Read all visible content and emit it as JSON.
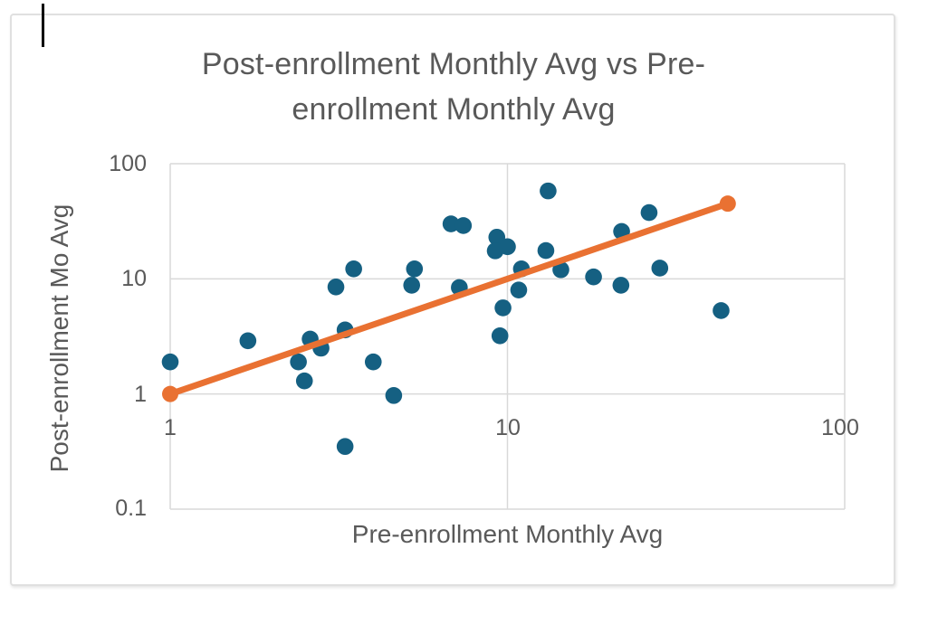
{
  "cursor": {
    "present": true
  },
  "chart_data": {
    "type": "scatter",
    "title": "Post-enrollment Monthly Avg vs Pre-enrollment Monthly Avg",
    "title_lines": [
      "Post-enrollment Monthly Avg vs Pre-",
      "enrollment Monthly Avg"
    ],
    "xlabel": "Pre-enrollment Monthly Avg",
    "ylabel": "Post-enrollment Mo Avg",
    "x_scale": "log",
    "y_scale": "log",
    "xlim": [
      1,
      100
    ],
    "ylim": [
      0.1,
      100
    ],
    "x_ticks": [
      1,
      10,
      100
    ],
    "x_tick_labels": [
      "1",
      "10",
      "100"
    ],
    "y_ticks": [
      100,
      10,
      1,
      0.1
    ],
    "y_tick_labels": [
      "100",
      "10",
      "1",
      "0.1"
    ],
    "grid": true,
    "legend": false,
    "series": [
      {
        "name": "scatter-points",
        "type": "scatter",
        "color": "#156082",
        "marker_radius": 9.3,
        "points": [
          [
            1.0,
            1.9
          ],
          [
            1.7,
            2.9
          ],
          [
            2.4,
            1.9
          ],
          [
            2.6,
            3.0
          ],
          [
            2.8,
            2.5
          ],
          [
            2.5,
            1.3
          ],
          [
            3.3,
            3.6
          ],
          [
            3.1,
            8.5
          ],
          [
            3.5,
            12.2
          ],
          [
            3.3,
            0.35
          ],
          [
            4.0,
            1.9
          ],
          [
            4.6,
            0.97
          ],
          [
            5.2,
            8.8
          ],
          [
            5.3,
            12.2
          ],
          [
            6.8,
            30
          ],
          [
            7.4,
            29
          ],
          [
            7.2,
            8.4
          ],
          [
            9.3,
            23
          ],
          [
            10.0,
            19.0
          ],
          [
            9.2,
            17.5
          ],
          [
            9.7,
            5.6
          ],
          [
            9.5,
            3.2
          ],
          [
            11.0,
            12.2
          ],
          [
            10.8,
            8.0
          ],
          [
            13.2,
            58
          ],
          [
            13.0,
            17.6
          ],
          [
            14.4,
            12.0
          ],
          [
            18.0,
            10.4
          ],
          [
            21.8,
            25.8
          ],
          [
            21.7,
            8.8
          ],
          [
            26.3,
            37.6
          ],
          [
            28.3,
            12.4
          ],
          [
            43.0,
            5.3
          ]
        ]
      },
      {
        "name": "trend-line",
        "type": "line",
        "color": "#E97132",
        "line_width": 7,
        "end_markers": true,
        "end_marker_radius": 9,
        "points": [
          [
            1,
            1
          ],
          [
            45,
            45
          ]
        ]
      }
    ],
    "colors": {
      "points": "#156082",
      "trend": "#E97132",
      "text": "#595959",
      "grid": "#D9D9D9",
      "card_border": "#E0E0E0",
      "cursor": "#000000"
    }
  }
}
